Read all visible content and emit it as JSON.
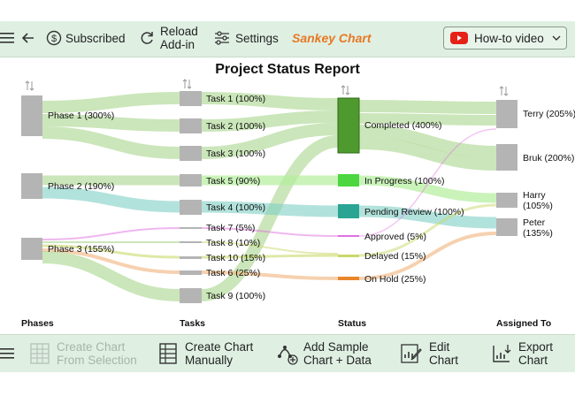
{
  "top_toolbar": {
    "subscribed_label": "Subscribed",
    "reload_label_1": "Reload",
    "reload_label_2": "Add-in",
    "settings_label": "Settings",
    "brand_label": "Sankey Chart",
    "howto_label": "How-to video",
    "brand_color": "#e87722"
  },
  "bottom_toolbar": {
    "create_selection_1": "Create Chart",
    "create_selection_2": "From Selection",
    "create_manual_1": "Create Chart",
    "create_manual_2": "Manually",
    "add_sample_1": "Add Sample",
    "add_sample_2": "Chart + Data",
    "edit_1": "Edit",
    "edit_2": "Chart",
    "export_1": "Export",
    "export_2": "Chart"
  },
  "chart_data": {
    "type": "sankey",
    "title": "Project Status Report",
    "columns": [
      "Phases",
      "Tasks",
      "Status",
      "Assigned To"
    ],
    "nodes": {
      "phases": [
        {
          "label": "Phase 1 (300%)",
          "value": 300
        },
        {
          "label": "Phase 2 (190%)",
          "value": 190
        },
        {
          "label": "Phase 3 (155%)",
          "value": 155
        }
      ],
      "tasks": [
        {
          "label": "Task 1 (100%)",
          "value": 100
        },
        {
          "label": "Task 2 (100%)",
          "value": 100
        },
        {
          "label": "Task 3 (100%)",
          "value": 100
        },
        {
          "label": "Task 5 (90%)",
          "value": 90
        },
        {
          "label": "Task 4 (100%)",
          "value": 100
        },
        {
          "label": "Task 7 (5%)",
          "value": 5
        },
        {
          "label": "Task 8 (10%)",
          "value": 10
        },
        {
          "label": "Task 10 (15%)",
          "value": 15
        },
        {
          "label": "Task 6 (25%)",
          "value": 25
        },
        {
          "label": "Task 9 (100%)",
          "value": 100
        }
      ],
      "status": [
        {
          "label": "Completed (400%)",
          "value": 400,
          "color": "#4e9a2e"
        },
        {
          "label": "In Progress (100%)",
          "value": 100,
          "color": "#4cd640"
        },
        {
          "label": "Pending Review (100%)",
          "value": 100,
          "color": "#2aa593"
        },
        {
          "label": "Approved (5%)",
          "value": 5,
          "color": "#e070e0"
        },
        {
          "label": "Delayed (15%)",
          "value": 15,
          "color": "#c9d86a"
        },
        {
          "label": "On Hold (25%)",
          "value": 25,
          "color": "#e8862a"
        }
      ],
      "assigned": [
        {
          "label": "Terry (205%)",
          "value": 205
        },
        {
          "label": "Bruk (200%)",
          "value": 200
        },
        {
          "label": "Harry (105%)",
          "label_1": "Harry",
          "label_2": "(105%)",
          "value": 105
        },
        {
          "label": "Peter (135%)",
          "label_1": "Peter",
          "label_2": "(135%)",
          "value": 135
        }
      ]
    }
  }
}
